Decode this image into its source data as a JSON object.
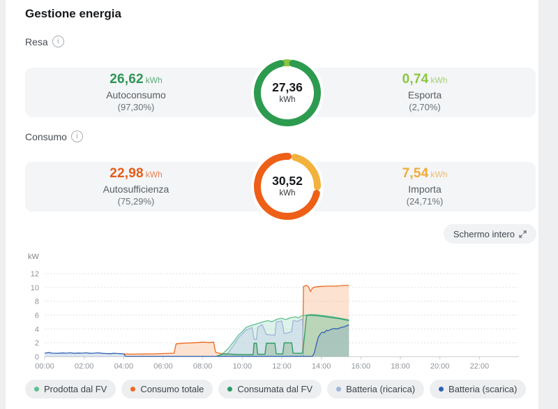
{
  "page_title": "Gestione energia",
  "resa": {
    "section_label": "Resa",
    "left": {
      "value": "26,62",
      "unit": "kWh",
      "label": "Autoconsumo",
      "percent": "(97,30%)",
      "color": "#2e9455"
    },
    "donut": {
      "value": "27,36",
      "unit": "kWh",
      "start_angle": -6,
      "segments": [
        {
          "name": "Esporta",
          "pct": 2.7,
          "color": "#8cc63f"
        },
        {
          "name": "Autoconsumo",
          "pct": 97.3,
          "color": "#2c9b4f"
        }
      ]
    },
    "right": {
      "value": "0,74",
      "unit": "kWh",
      "label": "Esporta",
      "percent": "(2,70%)",
      "color": "#8cc63f"
    }
  },
  "consumo": {
    "section_label": "Consumo",
    "left": {
      "value": "22,98",
      "unit": "kWh",
      "label": "Autosufficienza",
      "percent": "(75,29%)",
      "color": "#e45c1b"
    },
    "donut": {
      "value": "30,52",
      "unit": "kWh",
      "start_angle": 8,
      "segments": [
        {
          "name": "Importa",
          "pct": 24.71,
          "color": "#f2b23c"
        },
        {
          "name": "Autosufficienza",
          "pct": 75.29,
          "color": "#ee5f17"
        }
      ]
    },
    "right": {
      "value": "7,54",
      "unit": "kWh",
      "label": "Importa",
      "percent": "(24,71%)",
      "color": "#f0ab37"
    }
  },
  "fullscreen_button": {
    "label": "Schermo intero"
  },
  "chart_data": {
    "type": "area",
    "ylabel": "kW",
    "ylim": [
      0,
      12
    ],
    "yticks": [
      0,
      2,
      4,
      6,
      8,
      10,
      12
    ],
    "xtick_labels": [
      "00:00",
      "02:00",
      "04:00",
      "06:00",
      "08:00",
      "10:00",
      "12:00",
      "14:00",
      "16:00",
      "18:00",
      "20:00",
      "22:00"
    ],
    "x_range_hours": [
      0,
      24
    ],
    "grid": "dotted-horizontal",
    "legend_position": "bottom",
    "series": [
      {
        "name": "prodotta-dal-fv",
        "label": "Prodotta dal FV",
        "color": "#5fbf92",
        "fill": "#8fd4b2",
        "fill_opacity": 0.3,
        "points": [
          [
            8.7,
            0.05
          ],
          [
            9.0,
            0.4
          ],
          [
            9.3,
            1.2
          ],
          [
            9.6,
            2.3
          ],
          [
            9.8,
            3.1
          ],
          [
            10.0,
            3.6
          ],
          [
            10.2,
            4.25
          ],
          [
            10.5,
            4.55
          ],
          [
            10.8,
            4.8
          ],
          [
            11.0,
            5.0
          ],
          [
            11.3,
            5.2
          ],
          [
            11.5,
            5.05
          ],
          [
            11.8,
            5.45
          ],
          [
            12.0,
            5.55
          ],
          [
            12.2,
            5.35
          ],
          [
            12.45,
            5.65
          ],
          [
            12.7,
            5.75
          ],
          [
            12.85,
            5.6
          ],
          [
            13.0,
            5.9
          ],
          [
            13.2,
            6.0
          ],
          [
            13.5,
            6.1
          ],
          [
            13.8,
            6.05
          ],
          [
            14.2,
            5.9
          ],
          [
            14.6,
            5.75
          ],
          [
            15.0,
            5.55
          ],
          [
            15.4,
            5.3
          ]
        ]
      },
      {
        "name": "consumo-totale",
        "label": "Consumo totale",
        "color": "#ed6a1f",
        "fill": "#f5a068",
        "fill_opacity": 0.3,
        "points": [
          [
            4.0,
            0.38
          ],
          [
            4.5,
            0.36
          ],
          [
            5.0,
            0.38
          ],
          [
            5.5,
            0.4
          ],
          [
            6.0,
            0.45
          ],
          [
            6.55,
            0.5
          ],
          [
            6.65,
            1.85
          ],
          [
            7.0,
            1.95
          ],
          [
            7.5,
            2.0
          ],
          [
            8.0,
            2.1
          ],
          [
            8.3,
            2.05
          ],
          [
            8.55,
            2.1
          ],
          [
            8.65,
            0.65
          ],
          [
            8.8,
            0.5
          ],
          [
            9.2,
            0.4
          ],
          [
            9.6,
            0.33
          ],
          [
            10.0,
            0.3
          ],
          [
            10.55,
            0.3
          ],
          [
            10.6,
            1.95
          ],
          [
            10.72,
            1.95
          ],
          [
            10.78,
            0.35
          ],
          [
            11.15,
            0.35
          ],
          [
            11.22,
            1.95
          ],
          [
            11.65,
            1.95
          ],
          [
            11.72,
            0.4
          ],
          [
            12.05,
            0.4
          ],
          [
            12.12,
            2.0
          ],
          [
            12.5,
            2.0
          ],
          [
            12.57,
            0.5
          ],
          [
            12.9,
            0.48
          ],
          [
            13.05,
            0.5
          ],
          [
            13.1,
            10.15
          ],
          [
            13.25,
            10.3
          ],
          [
            13.35,
            10.1
          ],
          [
            13.45,
            9.4
          ],
          [
            13.55,
            9.9
          ],
          [
            13.65,
            10.05
          ],
          [
            13.8,
            10.1
          ],
          [
            14.0,
            10.15
          ],
          [
            14.3,
            10.2
          ],
          [
            14.7,
            10.2
          ],
          [
            15.0,
            10.25
          ],
          [
            15.2,
            10.3
          ],
          [
            15.4,
            10.3
          ]
        ]
      },
      {
        "name": "consumata-dal-fv",
        "label": "Consumata dal FV",
        "color": "#2a9a66",
        "fill": "#6fbf97",
        "fill_opacity": 0.3,
        "points": [
          [
            8.7,
            0.05
          ],
          [
            9.0,
            0.35
          ],
          [
            9.2,
            0.4
          ],
          [
            9.6,
            0.33
          ],
          [
            10.0,
            0.3
          ],
          [
            10.55,
            0.3
          ],
          [
            10.6,
            1.95
          ],
          [
            10.72,
            1.95
          ],
          [
            10.78,
            0.35
          ],
          [
            11.15,
            0.35
          ],
          [
            11.22,
            1.95
          ],
          [
            11.65,
            1.95
          ],
          [
            11.72,
            0.4
          ],
          [
            12.05,
            0.4
          ],
          [
            12.12,
            2.0
          ],
          [
            12.5,
            2.0
          ],
          [
            12.57,
            0.5
          ],
          [
            12.9,
            0.48
          ],
          [
            13.05,
            0.5
          ],
          [
            13.15,
            3.0
          ],
          [
            13.25,
            5.9
          ],
          [
            13.4,
            6.0
          ],
          [
            13.6,
            5.95
          ],
          [
            14.0,
            5.85
          ],
          [
            14.5,
            5.65
          ],
          [
            15.0,
            5.45
          ],
          [
            15.4,
            5.2
          ]
        ]
      },
      {
        "name": "batteria-ricarica",
        "label": "Batteria (ricarica)",
        "color": "#9fb3dd",
        "fill": "#b9c8e8",
        "fill_opacity": 0.35,
        "points": [
          [
            9.1,
            0.05
          ],
          [
            9.3,
            0.6
          ],
          [
            9.6,
            1.8
          ],
          [
            9.8,
            2.7
          ],
          [
            10.0,
            3.3
          ],
          [
            10.2,
            3.85
          ],
          [
            10.5,
            4.2
          ],
          [
            10.6,
            2.5
          ],
          [
            10.72,
            2.5
          ],
          [
            10.78,
            4.2
          ],
          [
            11.0,
            4.65
          ],
          [
            11.22,
            3.2
          ],
          [
            11.65,
            3.1
          ],
          [
            11.72,
            5.0
          ],
          [
            12.0,
            5.15
          ],
          [
            12.12,
            3.3
          ],
          [
            12.5,
            3.6
          ],
          [
            12.57,
            5.2
          ],
          [
            12.8,
            5.1
          ],
          [
            13.0,
            5.4
          ],
          [
            13.05,
            5.4
          ],
          [
            13.1,
            0.05
          ]
        ]
      },
      {
        "name": "batteria-scarica",
        "label": "Batteria (scarica)",
        "color": "#2f62b1",
        "fill": "#7d9cc9",
        "fill_opacity": 0.25,
        "points": [
          [
            0,
            0.5
          ],
          [
            0.2,
            0.58
          ],
          [
            0.4,
            0.5
          ],
          [
            0.7,
            0.48
          ],
          [
            0.9,
            0.53
          ],
          [
            1.1,
            0.5
          ],
          [
            1.3,
            0.55
          ],
          [
            1.5,
            0.48
          ],
          [
            1.7,
            0.52
          ],
          [
            1.9,
            0.5
          ],
          [
            2.1,
            0.55
          ],
          [
            2.3,
            0.48
          ],
          [
            2.5,
            0.5
          ],
          [
            2.7,
            0.55
          ],
          [
            2.9,
            0.48
          ],
          [
            3.1,
            0.45
          ],
          [
            3.3,
            0.42
          ],
          [
            3.5,
            0.48
          ],
          [
            3.7,
            0.45
          ],
          [
            3.9,
            0.42
          ],
          [
            4.0,
            0.4
          ],
          [
            4.1,
            0.05
          ],
          [
            13.55,
            0.05
          ],
          [
            13.65,
            0.6
          ],
          [
            13.75,
            1.8
          ],
          [
            13.85,
            2.8
          ],
          [
            13.95,
            3.3
          ],
          [
            14.05,
            3.55
          ],
          [
            14.15,
            3.45
          ],
          [
            14.25,
            3.8
          ],
          [
            14.35,
            3.75
          ],
          [
            14.5,
            3.95
          ],
          [
            14.65,
            4.05
          ],
          [
            14.8,
            4.0
          ],
          [
            15.0,
            4.2
          ],
          [
            15.2,
            4.35
          ],
          [
            15.4,
            4.6
          ]
        ]
      }
    ]
  }
}
